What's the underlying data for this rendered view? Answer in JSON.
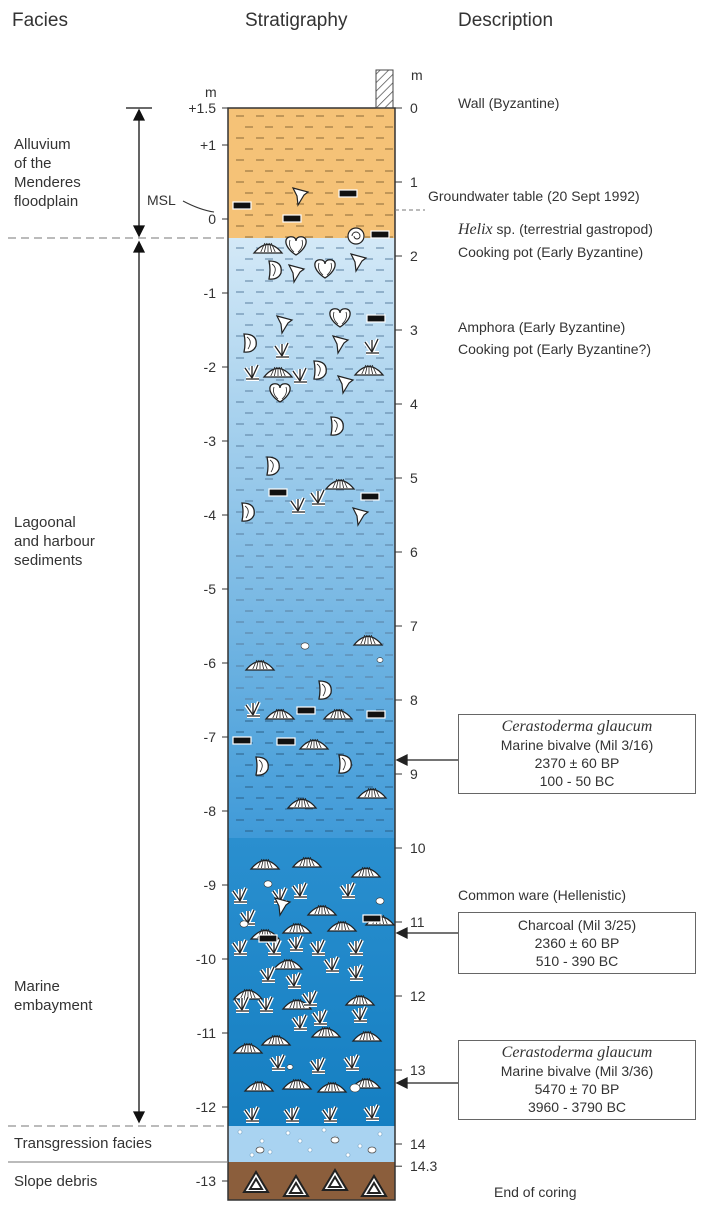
{
  "headers": {
    "facies": "Facies",
    "stratigraphy": "Stratigraphy",
    "description": "Description"
  },
  "axes": {
    "left_unit": "m",
    "right_unit": "m",
    "left_ticks": [
      "+1.5",
      "+1",
      "0",
      "-1",
      "-2",
      "-3",
      "-4",
      "-5",
      "-6",
      "-7",
      "-8",
      "-9",
      "-10",
      "-11",
      "-12",
      "-13"
    ],
    "left_values": [
      1.5,
      1,
      0,
      -1,
      -2,
      -3,
      -4,
      -5,
      -6,
      -7,
      -8,
      -9,
      -10,
      -11,
      -12,
      -13
    ],
    "right_ticks": [
      "0",
      "1",
      "2",
      "3",
      "4",
      "5",
      "6",
      "7",
      "8",
      "9",
      "10",
      "11",
      "12",
      "13",
      "14",
      "14.3"
    ],
    "right_values": [
      0,
      1,
      2,
      3,
      4,
      5,
      6,
      7,
      8,
      9,
      10,
      11,
      12,
      13,
      14,
      14.3
    ]
  },
  "msl_label": "MSL",
  "facies": [
    {
      "label": "Alluvium\nof the\nMenderes\nfloodplain"
    },
    {
      "label": "Lagoonal\nand harbour\nsediments"
    },
    {
      "label": "Marine\nembayment"
    },
    {
      "label": "Transgression facies"
    },
    {
      "label": "Slope debris"
    }
  ],
  "descriptions": {
    "wall": "Wall (Byzantine)",
    "groundwater": "Groundwater table (20 Sept 1992)",
    "helix_italic": "Helix",
    "helix_rest": " sp. (terrestrial gastropod)",
    "cooking_pot_1": "Cooking pot (Early Byzantine)",
    "amphora": "Amphora (Early Byzantine)",
    "cooking_pot_2": "Cooking pot (Early Byzantine?)",
    "common_ware": "Common ware (Hellenistic)",
    "end": "End of coring"
  },
  "dates": [
    {
      "title": "Cerastoderma glaucum",
      "line1": "Marine bivalve (Mil 3/16)",
      "line2": "2370 ± 60 BP",
      "line3": "100 - 50 BC"
    },
    {
      "title": "",
      "line1": "Charcoal (Mil 3/25)",
      "line2": "2360 ± 60 BP",
      "line3": "510 - 390 BC"
    },
    {
      "title": "Cerastoderma glaucum",
      "line1": "Marine bivalve (Mil 3/36)",
      "line2": "5470 ± 70 BP",
      "line3": "3960 - 3790 BC"
    }
  ],
  "colors": {
    "alluvium": "#f5c277",
    "lagoon_top": "#cfe6f6",
    "lagoon_bottom": "#4ea3db",
    "marine": "#1a86c8",
    "transgression": "#a9d3f1",
    "slope": "#8b5e3c"
  }
}
